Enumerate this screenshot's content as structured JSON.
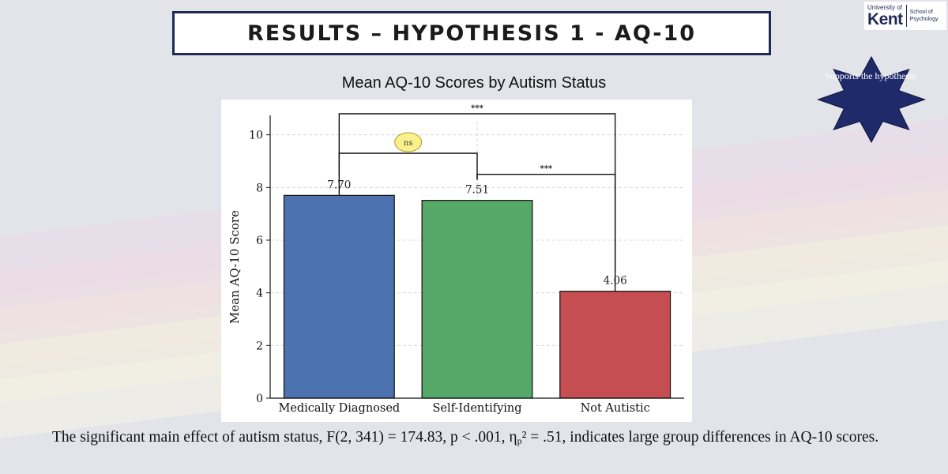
{
  "slide": {
    "title": "RESULTS – HYPOTHESIS 1 - AQ-10",
    "logo": {
      "university": "University of",
      "name": "Kent",
      "school": "School of Psychology"
    },
    "badge": {
      "text": "Supports the hypothesis.",
      "color": "#1f2a6b"
    },
    "footnote": {
      "pre": "The significant main effect of autism status, F(2, 341) = 174.83, p < .001, η",
      "sub": "p",
      "post": "² = .51, indicates large group differences in AQ-10 scores."
    },
    "colors": {
      "background": "#e3e3ea",
      "title_border": "#1f2a56"
    }
  },
  "chart_data": {
    "type": "bar",
    "title": "Mean AQ-10 Scores by Autism Status",
    "ylabel": "Mean AQ-10 Score",
    "xlabel": "",
    "categories": [
      "Medically Diagnosed",
      "Self-Identifying",
      "Not Autistic"
    ],
    "values": [
      7.7,
      7.51,
      4.06
    ],
    "value_labels": [
      "7.70",
      "7.51",
      "4.06"
    ],
    "colors": [
      "#4c72b0",
      "#55a868",
      "#c44e52"
    ],
    "ylim": [
      0,
      10.5
    ],
    "yticks": [
      0,
      2,
      4,
      6,
      8,
      10
    ],
    "grid": true,
    "comparisons": [
      {
        "from": 0,
        "to": 1,
        "y": 9.3,
        "label": "ns",
        "highlight": true
      },
      {
        "from": 1,
        "to": 2,
        "y": 8.5,
        "label": "***",
        "highlight": false
      },
      {
        "from": 0,
        "to": 2,
        "y": 10.8,
        "label": "***",
        "highlight": false
      }
    ]
  }
}
